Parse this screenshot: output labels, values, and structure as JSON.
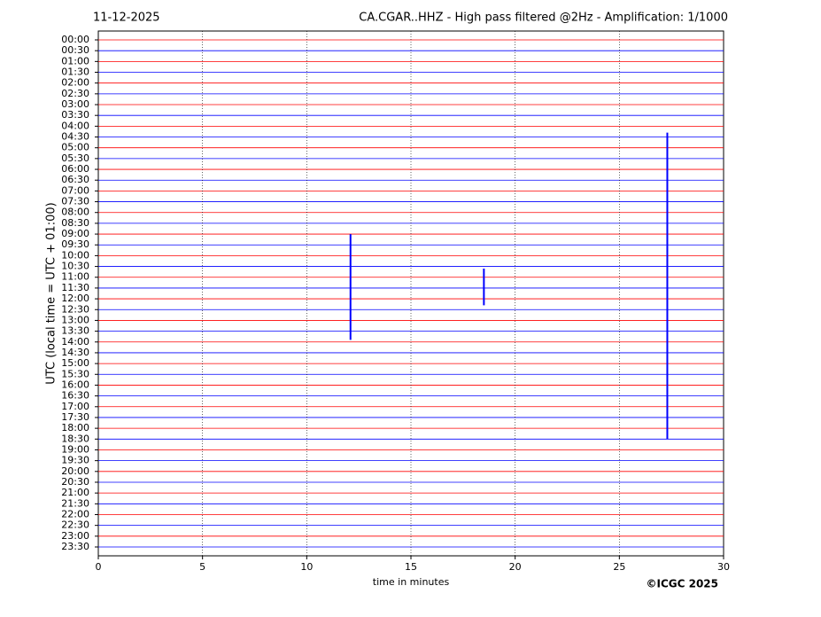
{
  "chart_data": {
    "type": "helicorder",
    "date": "11-12-2025",
    "title": "CA.CGAR..HHZ - High pass filtered @2Hz - Amplification: 1/1000",
    "ylabel": "UTC (local time = UTC + 01:00)",
    "xlabel": "time in minutes",
    "credit": "©ICGC 2025",
    "categories": [
      "00:00",
      "00:30",
      "01:00",
      "01:30",
      "02:00",
      "02:30",
      "03:00",
      "03:30",
      "04:00",
      "04:30",
      "05:00",
      "05:30",
      "06:00",
      "06:30",
      "07:00",
      "07:30",
      "08:00",
      "08:30",
      "09:00",
      "09:30",
      "10:00",
      "10:30",
      "11:00",
      "11:30",
      "12:00",
      "12:30",
      "13:00",
      "13:30",
      "14:00",
      "14:30",
      "15:00",
      "15:30",
      "16:00",
      "16:30",
      "17:00",
      "17:30",
      "18:00",
      "18:30",
      "19:00",
      "19:30",
      "20:00",
      "20:30",
      "21:00",
      "21:30",
      "22:00",
      "22:30",
      "23:00",
      "23:30"
    ],
    "colors": [
      "#ff0000",
      "#0000ff"
    ],
    "xlim": [
      0,
      30
    ],
    "xticks": [
      0,
      5,
      10,
      15,
      20,
      25,
      30
    ],
    "grid": true,
    "events": [
      {
        "x": 12.1,
        "start": 9.0,
        "end": 13.9
      },
      {
        "x": 18.5,
        "start": 10.6,
        "end": 12.3
      },
      {
        "x": 27.3,
        "start": 4.3,
        "end": 18.5
      }
    ]
  }
}
